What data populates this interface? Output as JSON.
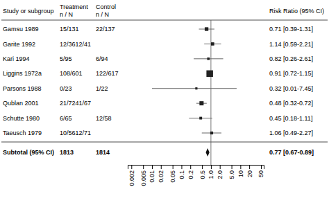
{
  "chart_data": {
    "type": "forest",
    "headers": {
      "study": "Study or subgroup",
      "treatment": "Treatment",
      "control": "Control",
      "n_over_n": "n / N",
      "value": "Risk Ratio (95% CI)"
    },
    "categories": [
      "Gamsu 1989",
      "Garite 1992",
      "Kari 1994",
      "Liggins 1972a",
      "Parsons 1988",
      "Qublan 2001",
      "Schutte 1980",
      "Taeusch 1979"
    ],
    "treatment": [
      "15/131",
      "12/3612/41",
      "5/95",
      "108/601",
      "0/23",
      "21/7241/67",
      "6/65",
      "10/5612/71"
    ],
    "control": [
      "22/137",
      null,
      "6/94",
      "122/617",
      "1/22",
      null,
      "12/58",
      null
    ],
    "values": [
      0.71,
      1.14,
      0.82,
      0.91,
      0.32,
      0.48,
      0.45,
      1.06
    ],
    "ci_low": [
      0.39,
      0.59,
      0.26,
      0.72,
      0.01,
      0.32,
      0.18,
      0.49
    ],
    "ci_high": [
      1.31,
      2.21,
      2.61,
      1.15,
      7.45,
      0.72,
      1.11,
      2.27
    ],
    "weights": [
      2.0,
      1.5,
      0.8,
      5.0,
      0.5,
      2.5,
      1.0,
      1.2
    ],
    "value_labels": [
      "0.71 [0.39-1.31]",
      "1.14 [0.59-2.21]",
      "0.82 [0.26-2.61]",
      "0.91 [0.72-1.15]",
      "0.32 [0.01-7.45]",
      "0.48 [0.32-0.72]",
      "0.45 [0.18-1.11]",
      "1.06 [0.49-2.27]"
    ],
    "color": "#222222",
    "subtotal": {
      "label": "Subtotal (95% CI)",
      "value": 0.77,
      "ci_low": 0.67,
      "ci_high": 0.89,
      "n_treatment": 1813,
      "n_control": 1814,
      "value_label": "0.77 [0.67-0.89]",
      "color": "#111111"
    },
    "reference_line": 1,
    "log": "x",
    "xlim": [
      0.0015,
      62
    ],
    "xticks": [
      0.002,
      0.005,
      0.01,
      0.02,
      0.05,
      0.1,
      0.2,
      0.5,
      {
        "value": 1,
        "label": "1.0"
      },
      {
        "value": 2,
        "label": "2.0"
      },
      {
        "value": 5,
        "label": "5.0"
      },
      10,
      20,
      50
    ]
  }
}
